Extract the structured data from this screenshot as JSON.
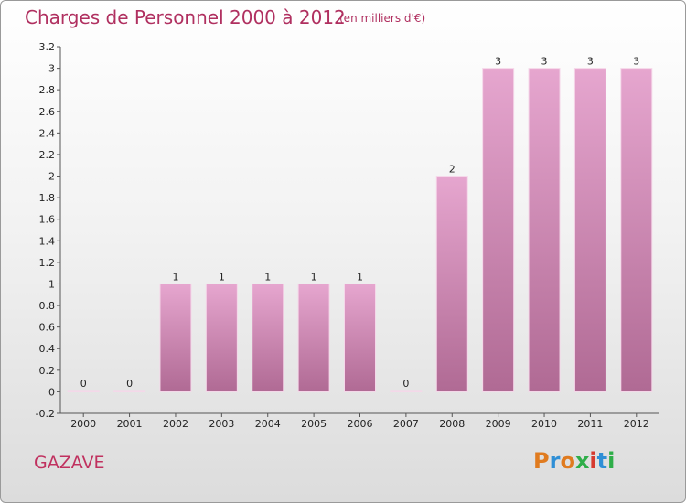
{
  "header": {
    "title": "Charges de Personnel 2000 à 2012",
    "subtitle": "(en milliers d'€)"
  },
  "footer": {
    "commune": "GAZAVE",
    "logo_text": "Proxiti",
    "logo_colors": [
      "#e07b1f",
      "#2f8fd6",
      "#e07b1f",
      "#2fae49",
      "#d63a2f",
      "#2f8fd6",
      "#2fae49"
    ]
  },
  "colors": {
    "bar_top": "#e6a6cf",
    "bar_bottom": "#b06a94",
    "accent": "#b03060"
  },
  "chart_data": {
    "type": "bar",
    "title": "Charges de Personnel 2000 à 2012",
    "categories": [
      "2000",
      "2001",
      "2002",
      "2003",
      "2004",
      "2005",
      "2006",
      "2007",
      "2008",
      "2009",
      "2010",
      "2011",
      "2012"
    ],
    "values": [
      0,
      0,
      1,
      1,
      1,
      1,
      1,
      0,
      2,
      3,
      3,
      3,
      3
    ],
    "data_labels": [
      "0",
      "0",
      "1",
      "1",
      "1",
      "1",
      "1",
      "0",
      "2",
      "3",
      "3",
      "3",
      "3"
    ],
    "ylim": [
      -0.2,
      3.2
    ],
    "yticks": [
      -0.2,
      0,
      0.2,
      0.4,
      0.6,
      0.8,
      1,
      1.2,
      1.4,
      1.6,
      1.8,
      2,
      2.2,
      2.4,
      2.6,
      2.8,
      3,
      3.2
    ],
    "ytick_labels": [
      "-0.2",
      "0",
      "0.2",
      "0.4",
      "0.6",
      "0.8",
      "1",
      "1.2",
      "1.4",
      "1.6",
      "1.8",
      "2",
      "2.2",
      "2.4",
      "2.6",
      "2.8",
      "3",
      "3.2"
    ],
    "grid": false,
    "xlabel": "",
    "ylabel": ""
  }
}
